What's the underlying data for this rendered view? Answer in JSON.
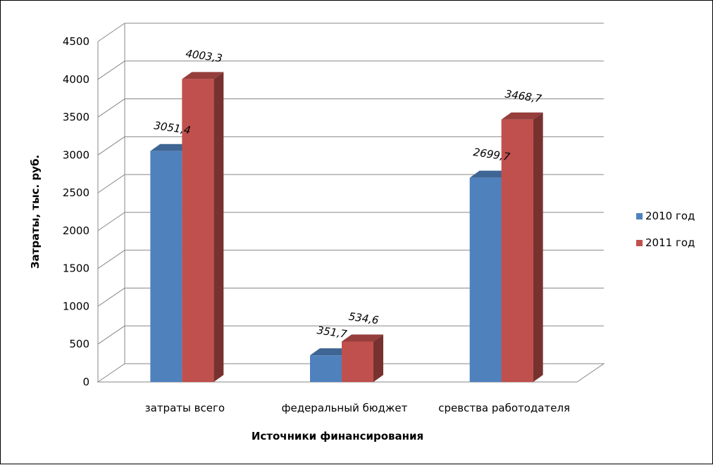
{
  "chart_data": {
    "type": "bar",
    "title": "",
    "xlabel": "Источники финансирования",
    "ylabel": "Затраты, тыс. руб.",
    "categories": [
      "затраты всего",
      "федеральный бюджет",
      "сревства работодателя"
    ],
    "series": [
      {
        "name": "2010 год",
        "values": [
          3051.4,
          351.7,
          2699.7
        ],
        "labels": [
          "3051,4",
          "351,7",
          "2699,7"
        ],
        "color": "#4f81bd"
      },
      {
        "name": "2011 год",
        "values": [
          4003.3,
          534.6,
          3468.7
        ],
        "labels": [
          "4003,3",
          "534,6",
          "3468,7"
        ],
        "color": "#c0504d"
      }
    ],
    "ylim": [
      0,
      4500
    ],
    "yticks": [
      0,
      500,
      1000,
      1500,
      2000,
      2500,
      3000,
      3500,
      4000,
      4500
    ],
    "grid": true,
    "legend": "right",
    "style": "3d-column"
  }
}
